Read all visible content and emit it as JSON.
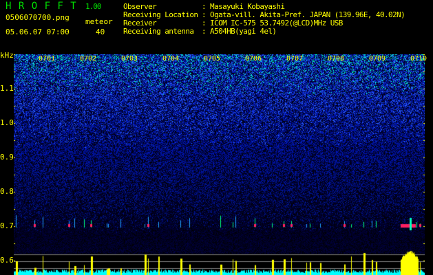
{
  "header": {
    "app_title": "H R O F F T",
    "version": "1.00",
    "filename": "0506070700.png",
    "datetime": "05.06.07 07:00",
    "meteor_label": "meteor",
    "meteor_count": "40",
    "info": [
      {
        "label": "Observer",
        "value": ": Masayuki Kobayashi"
      },
      {
        "label": "Receiving Location",
        "value": ": Ogata-vill. Akita-Pref. JAPAN (139.96E, 40.02N)"
      },
      {
        "label": "Receiver",
        "value": ": ICOM IC-575 53.7492(@LCD)MHz USB"
      },
      {
        "label": "Receiving antenna",
        "value": ": A504HB(yagi 4el)"
      }
    ]
  },
  "chart_data": {
    "type": "heatmap",
    "ylabel": "kHz",
    "x_ticks": [
      "0701",
      "0702",
      "0703",
      "0704",
      "0705",
      "0706",
      "0707",
      "0708",
      "0709",
      "0710"
    ],
    "y_ticks": [
      "1.1",
      "1.0",
      "0.9",
      "0.8",
      "0.7",
      "0.6"
    ],
    "ylim": [
      0.57,
      1.2
    ],
    "meteor_band_khz": 0.7,
    "colors": {
      "background": "#000000",
      "noise_low": "#000060",
      "noise_high": "#2040ff",
      "text": "#ffff00",
      "title": "#00e000",
      "echo": "#ff2060",
      "histogram": "#ffff00",
      "baseline": "#00ffff"
    }
  }
}
